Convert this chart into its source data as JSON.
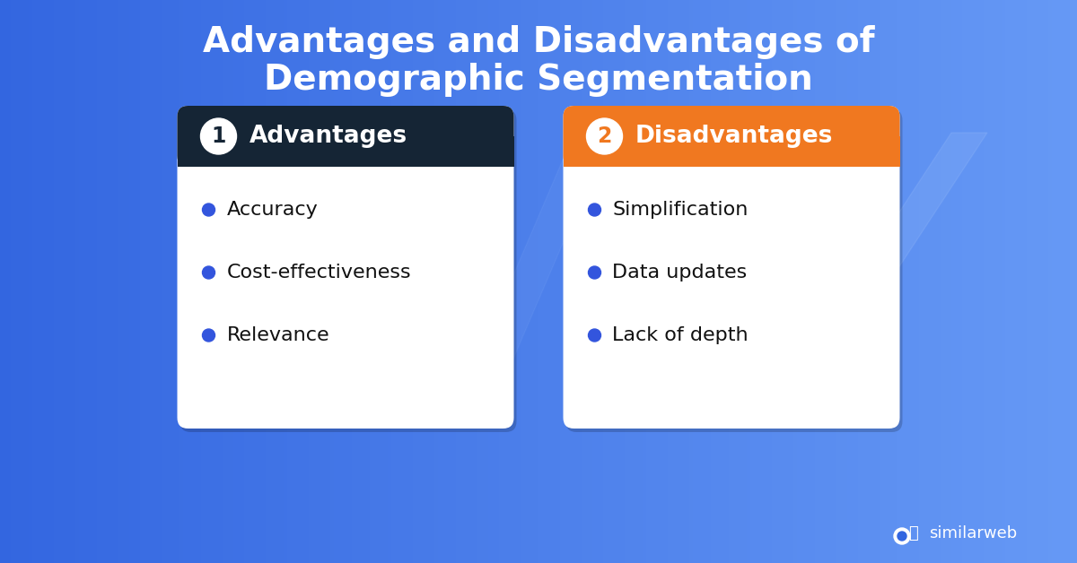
{
  "title_line1": "Advantages and Disadvantages of",
  "title_line2": "Demographic Segmentation",
  "title_color": "#ffffff",
  "title_fontsize": 28,
  "bg_color_left": "#3366e0",
  "bg_color_right": "#5588ee",
  "card1_header_bg": "#152535",
  "card1_header_text": "Advantages",
  "card1_number": "1",
  "card1_body_bg": "#ffffff",
  "card1_items": [
    "Accuracy",
    "Cost-effectiveness",
    "Relevance"
  ],
  "card2_header_bg": "#f07820",
  "card2_header_text": "Disadvantages",
  "card2_number": "2",
  "card2_body_bg": "#ffffff",
  "card2_items": [
    "Simplification",
    "Data updates",
    "Lack of depth"
  ],
  "bullet_color": "#3355dd",
  "item_text_color": "#111111",
  "item_fontsize": 16,
  "header_fontsize": 19,
  "number_fontsize": 17,
  "similarweb_text": "similarweb",
  "similarweb_color": "#ffffff"
}
